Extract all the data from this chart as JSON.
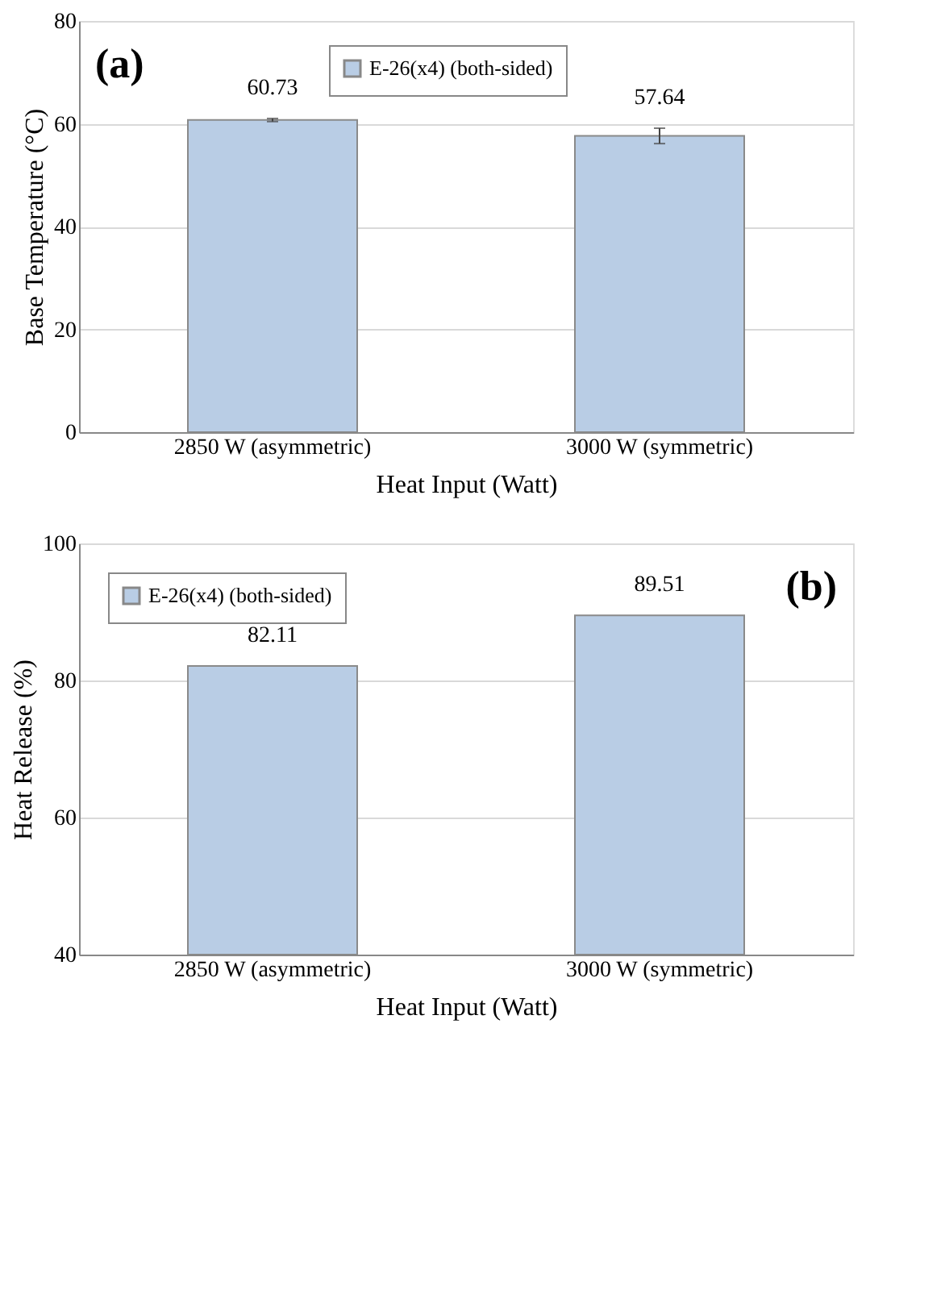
{
  "chart_data": [
    {
      "type": "bar",
      "categories": [
        "2850 W (asymmetric)",
        "3000 W (symmetric)"
      ],
      "xlabel": "Heat Input (Watt)",
      "ylabel": "Base Temperature (°C)",
      "ylim": [
        0,
        80
      ],
      "yticks": [
        0,
        20,
        40,
        60,
        80
      ],
      "grid": "y",
      "legend": "top",
      "data_labels": true,
      "annotations": [
        "(a)"
      ],
      "series": [
        {
          "name": "E-26(x4) (both-sided)",
          "color": "#b9cde5",
          "values": [
            60.73,
            57.64
          ],
          "errors": [
            0.3,
            1.5
          ]
        }
      ]
    },
    {
      "type": "bar",
      "categories": [
        "2850 W (asymmetric)",
        "3000 W (symmetric)"
      ],
      "xlabel": "Heat Input (Watt)",
      "ylabel": "Heat Release (%)",
      "ylim": [
        40,
        100
      ],
      "yticks": [
        40,
        60,
        80,
        100
      ],
      "grid": "y",
      "legend": "top left",
      "data_labels": true,
      "annotations": [
        "(b)"
      ],
      "series": [
        {
          "name": "E-26(x4) (both-sided)",
          "color": "#b9cde5",
          "values": [
            82.11,
            89.51
          ]
        }
      ]
    }
  ]
}
